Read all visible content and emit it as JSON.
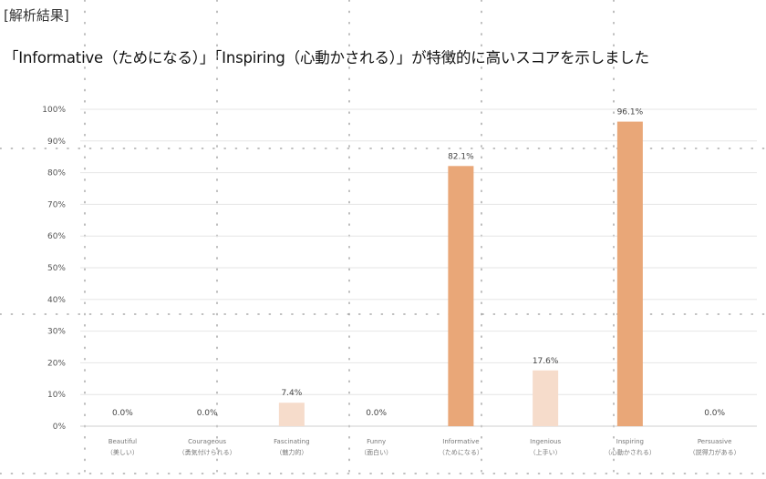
{
  "header": {
    "tag": "[解析結果]",
    "headline": "「Informative（ためになる）」「Inspiring（心動かされる）」が特徴的に高いスコアを示しました"
  },
  "colors": {
    "highlight_bar": "#E9A778",
    "light_bar": "#F6DCCB",
    "grid": "#E6E6E6",
    "dots": "#9A9A9A"
  },
  "chart_data": {
    "type": "bar",
    "categories": [
      {
        "en": "Beautiful",
        "ja": "（美しい）"
      },
      {
        "en": "Courageous",
        "ja": "（勇気付けられる）"
      },
      {
        "en": "Fascinating",
        "ja": "（魅力的）"
      },
      {
        "en": "Funny",
        "ja": "（面白い）"
      },
      {
        "en": "Informative",
        "ja": "（ためになる）"
      },
      {
        "en": "Ingenious",
        "ja": "（上手い）"
      },
      {
        "en": "Inspiring",
        "ja": "（心動かされる）"
      },
      {
        "en": "Persuasive",
        "ja": "（説得力がある）"
      }
    ],
    "values": [
      0.0,
      0.0,
      7.4,
      0.0,
      82.1,
      17.6,
      96.1,
      0.0
    ],
    "value_labels": [
      "0.0%",
      "0.0%",
      "7.4%",
      "0.0%",
      "82.1%",
      "17.6%",
      "96.1%",
      "0.0%"
    ],
    "highlight": [
      false,
      false,
      false,
      false,
      true,
      false,
      true,
      false
    ],
    "ylim": [
      0,
      100
    ],
    "yticks": [
      "0%",
      "10%",
      "20%",
      "30%",
      "40%",
      "50%",
      "60%",
      "70%",
      "80%",
      "90%",
      "100%"
    ],
    "grid": true,
    "title": "",
    "xlabel": "",
    "ylabel": ""
  }
}
